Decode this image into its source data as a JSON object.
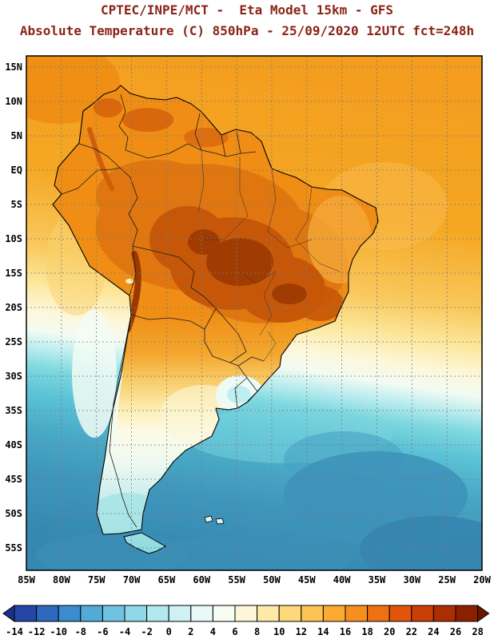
{
  "header": {
    "line1": "CPTEC/INPE/MCT -  Eta Model 15km - GFS",
    "line2": "Absolute Temperature (C) 850hPa - 25/09/2020 12UTC fct=248h"
  },
  "map": {
    "lat_ticks": [
      "15N",
      "10N",
      "5N",
      "EQ",
      "5S",
      "10S",
      "15S",
      "20S",
      "25S",
      "30S",
      "35S",
      "40S",
      "45S",
      "50S",
      "55S"
    ],
    "lon_ticks": [
      "85W",
      "80W",
      "75W",
      "70W",
      "65W",
      "60W",
      "55W",
      "50W",
      "45W",
      "40W",
      "35W",
      "30W",
      "25W",
      "20W"
    ]
  },
  "colorbar": {
    "tick_labels": [
      "-14",
      "-12",
      "-10",
      "-8",
      "-6",
      "-4",
      "-2",
      "0",
      "2",
      "4",
      "6",
      "8",
      "10",
      "12",
      "14",
      "16",
      "18",
      "20",
      "22",
      "24",
      "26",
      "28"
    ],
    "colors": [
      "#1c2f8a",
      "#2646a6",
      "#2d68bd",
      "#3a8cce",
      "#52aad9",
      "#6fc3e0",
      "#90d8e8",
      "#b3e8ef",
      "#cff1f3",
      "#e8f9f8",
      "#f7fdf3",
      "#fdf6d8",
      "#fdeaa8",
      "#fcd97a",
      "#fcc452",
      "#fbab33",
      "#f68f20",
      "#ee7213",
      "#e0550b",
      "#c93f05",
      "#ab2d02",
      "#8b2000",
      "#6b1600"
    ]
  },
  "colors": {
    "title": "#8b2418",
    "tick_text": "#000000",
    "grid": "#7a7a7a",
    "ocean_warm": "#f39c1e",
    "ocean_cold": "#3488b1",
    "land_base": "#ef8d15",
    "land_hot": "#a03c02"
  }
}
